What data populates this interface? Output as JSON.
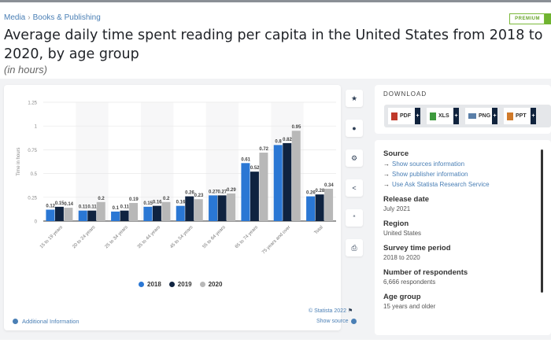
{
  "breadcrumb": [
    "Media",
    "Books & Publishing"
  ],
  "badge": "PREMIUM",
  "title": "Average daily time spent reading per capita in the United States from 2018 to 2020, by age group",
  "subtitle": "(in hours)",
  "toolbar": {
    "icons": [
      "star-icon",
      "bell-icon",
      "gear-icon",
      "share-icon",
      "quote-icon",
      "print-icon"
    ]
  },
  "download": {
    "label": "DOWNLOAD",
    "buttons": [
      {
        "label": "PDF",
        "icon": "pdf-file-icon",
        "color": "#c0392b"
      },
      {
        "label": "XLS",
        "icon": "xls-file-icon",
        "color": "#3d9a3d"
      },
      {
        "label": "PNG",
        "icon": "png-file-icon",
        "color": "#5a7fa8"
      },
      {
        "label": "PPT",
        "icon": "ppt-file-icon",
        "color": "#d07a2a"
      }
    ],
    "plus": "+"
  },
  "info": {
    "source_title": "Source",
    "source_links": [
      "Show sources information",
      "Show publisher information",
      "Use Ask Statista Research Service"
    ],
    "release_date_label": "Release date",
    "release_date": "July 2021",
    "region_label": "Region",
    "region": "United States",
    "survey_period_label": "Survey time period",
    "survey_period": "2018 to 2020",
    "respondents_label": "Number of respondents",
    "respondents": "6,666 respondents",
    "age_group_label": "Age group",
    "age_group": "15 years and older"
  },
  "footer": {
    "additional_info": "Additional Information",
    "copyright": "© Statista 2022",
    "show_source": "Show source"
  },
  "chart_data": {
    "type": "bar",
    "title": "Average daily time spent reading per capita in the United States from 2018 to 2020, by age group",
    "xlabel": "",
    "ylabel": "Time in hours",
    "ylim": [
      0,
      1.25
    ],
    "yticks": [
      "0",
      "0.25",
      "0.5",
      "0.75",
      "1",
      "1.25"
    ],
    "grid": true,
    "legend_position": "bottom",
    "categories": [
      "15 to 19 years",
      "20 to 24 years",
      "25 to 34 years",
      "35 to 44 years",
      "45 to 54 years",
      "55 to 64 years",
      "65 to 74 years",
      "75 years and over",
      "Total"
    ],
    "series": [
      {
        "name": "2018",
        "color": "#2a77d4",
        "values": [
          0.12,
          0.11,
          0.1,
          0.15,
          0.16,
          0.27,
          0.61,
          0.8,
          0.26
        ]
      },
      {
        "name": "2019",
        "color": "#0f2340",
        "values": [
          0.15,
          0.11,
          0.11,
          0.16,
          0.26,
          0.27,
          0.52,
          0.82,
          0.28
        ]
      },
      {
        "name": "2020",
        "color": "#b8b8b8",
        "values": [
          0.14,
          0.2,
          0.19,
          0.2,
          0.23,
          0.29,
          0.72,
          0.95,
          0.34
        ]
      }
    ]
  }
}
